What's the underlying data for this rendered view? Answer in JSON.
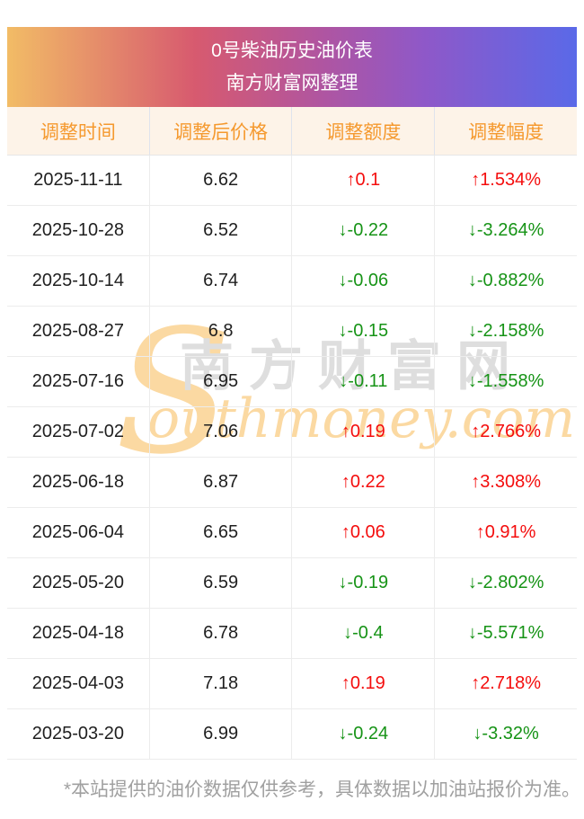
{
  "banner": {
    "title": "0号柴油历史油价表",
    "subtitle": "南方财富网整理"
  },
  "table": {
    "columns": [
      "调整时间",
      "调整后价格",
      "调整额度",
      "调整幅度"
    ],
    "rows": [
      {
        "date": "2025-11-11",
        "price": "6.62",
        "change": "↑0.1",
        "pct": "↑1.534%",
        "dir": "up"
      },
      {
        "date": "2025-10-28",
        "price": "6.52",
        "change": "↓-0.22",
        "pct": "↓-3.264%",
        "dir": "down"
      },
      {
        "date": "2025-10-14",
        "price": "6.74",
        "change": "↓-0.06",
        "pct": "↓-0.882%",
        "dir": "down"
      },
      {
        "date": "2025-08-27",
        "price": "6.8",
        "change": "↓-0.15",
        "pct": "↓-2.158%",
        "dir": "down"
      },
      {
        "date": "2025-07-16",
        "price": "6.95",
        "change": "↓-0.11",
        "pct": "↓-1.558%",
        "dir": "down"
      },
      {
        "date": "2025-07-02",
        "price": "7.06",
        "change": "↑0.19",
        "pct": "↑2.766%",
        "dir": "up"
      },
      {
        "date": "2025-06-18",
        "price": "6.87",
        "change": "↑0.22",
        "pct": "↑3.308%",
        "dir": "up"
      },
      {
        "date": "2025-06-04",
        "price": "6.65",
        "change": "↑0.06",
        "pct": "↑0.91%",
        "dir": "up"
      },
      {
        "date": "2025-05-20",
        "price": "6.59",
        "change": "↓-0.19",
        "pct": "↓-2.802%",
        "dir": "down"
      },
      {
        "date": "2025-04-18",
        "price": "6.78",
        "change": "↓-0.4",
        "pct": "↓-5.571%",
        "dir": "down"
      },
      {
        "date": "2025-04-03",
        "price": "7.18",
        "change": "↑0.19",
        "pct": "↑2.718%",
        "dir": "up"
      },
      {
        "date": "2025-03-20",
        "price": "6.99",
        "change": "↓-0.24",
        "pct": "↓-3.32%",
        "dir": "down"
      }
    ]
  },
  "watermark": {
    "initial": "S",
    "cjk": "南方财富网",
    "latin": "outhmoney.com"
  },
  "footer": {
    "note": "*本站提供的油价数据仅供参考，具体数据以加油站报价为准。"
  },
  "colors": {
    "up": "#f40d0d",
    "down": "#169316",
    "header_bg": "#fdf3e8",
    "header_text": "#f5992e",
    "banner_gradient": [
      "#f2bc66 0%",
      "#d75a6f 33%",
      "#b055a0 55%",
      "#8f58c8 73%",
      "#5a69e8 100%"
    ]
  }
}
